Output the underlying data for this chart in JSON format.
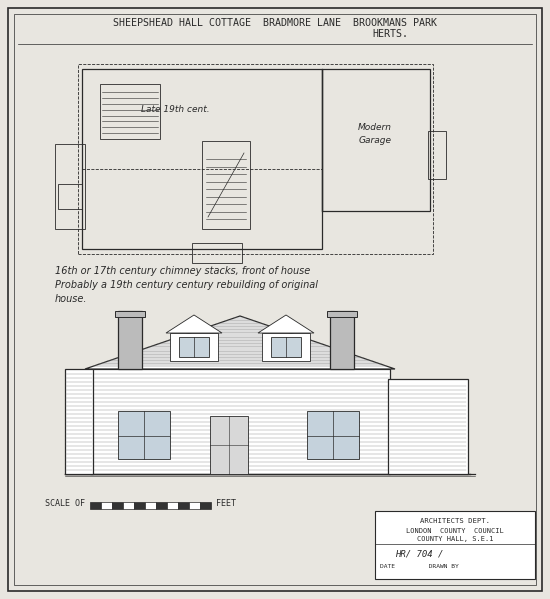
{
  "paper_color": "#e8e6e0",
  "ink": "#2a2a2a",
  "title_line1": "SHEEPSHEAD HALL COTTAGE  BRADMORE LANE  BROOKMANS PARK",
  "title_line2": "HERTS.",
  "note_line1": "16th or 17th century chimney stacks, front of house",
  "note_line2": "Probably a 19th century century rebuilding of original",
  "note_line3": "house.",
  "label_late": "Late 19th cent.",
  "label_modern": "Modern\nGarage",
  "scale_text": "SCALE OF",
  "feet_text": "FEET",
  "stamp_line1": "ARCHITECTS DEPT.",
  "stamp_line2": "LONDON  COUNTY  COUNCIL",
  "stamp_line3": "COUNTY HALL, S.E.1",
  "stamp_line4": "HR/ 704 /",
  "stamp_line5": "DATE         DRAWN BY"
}
